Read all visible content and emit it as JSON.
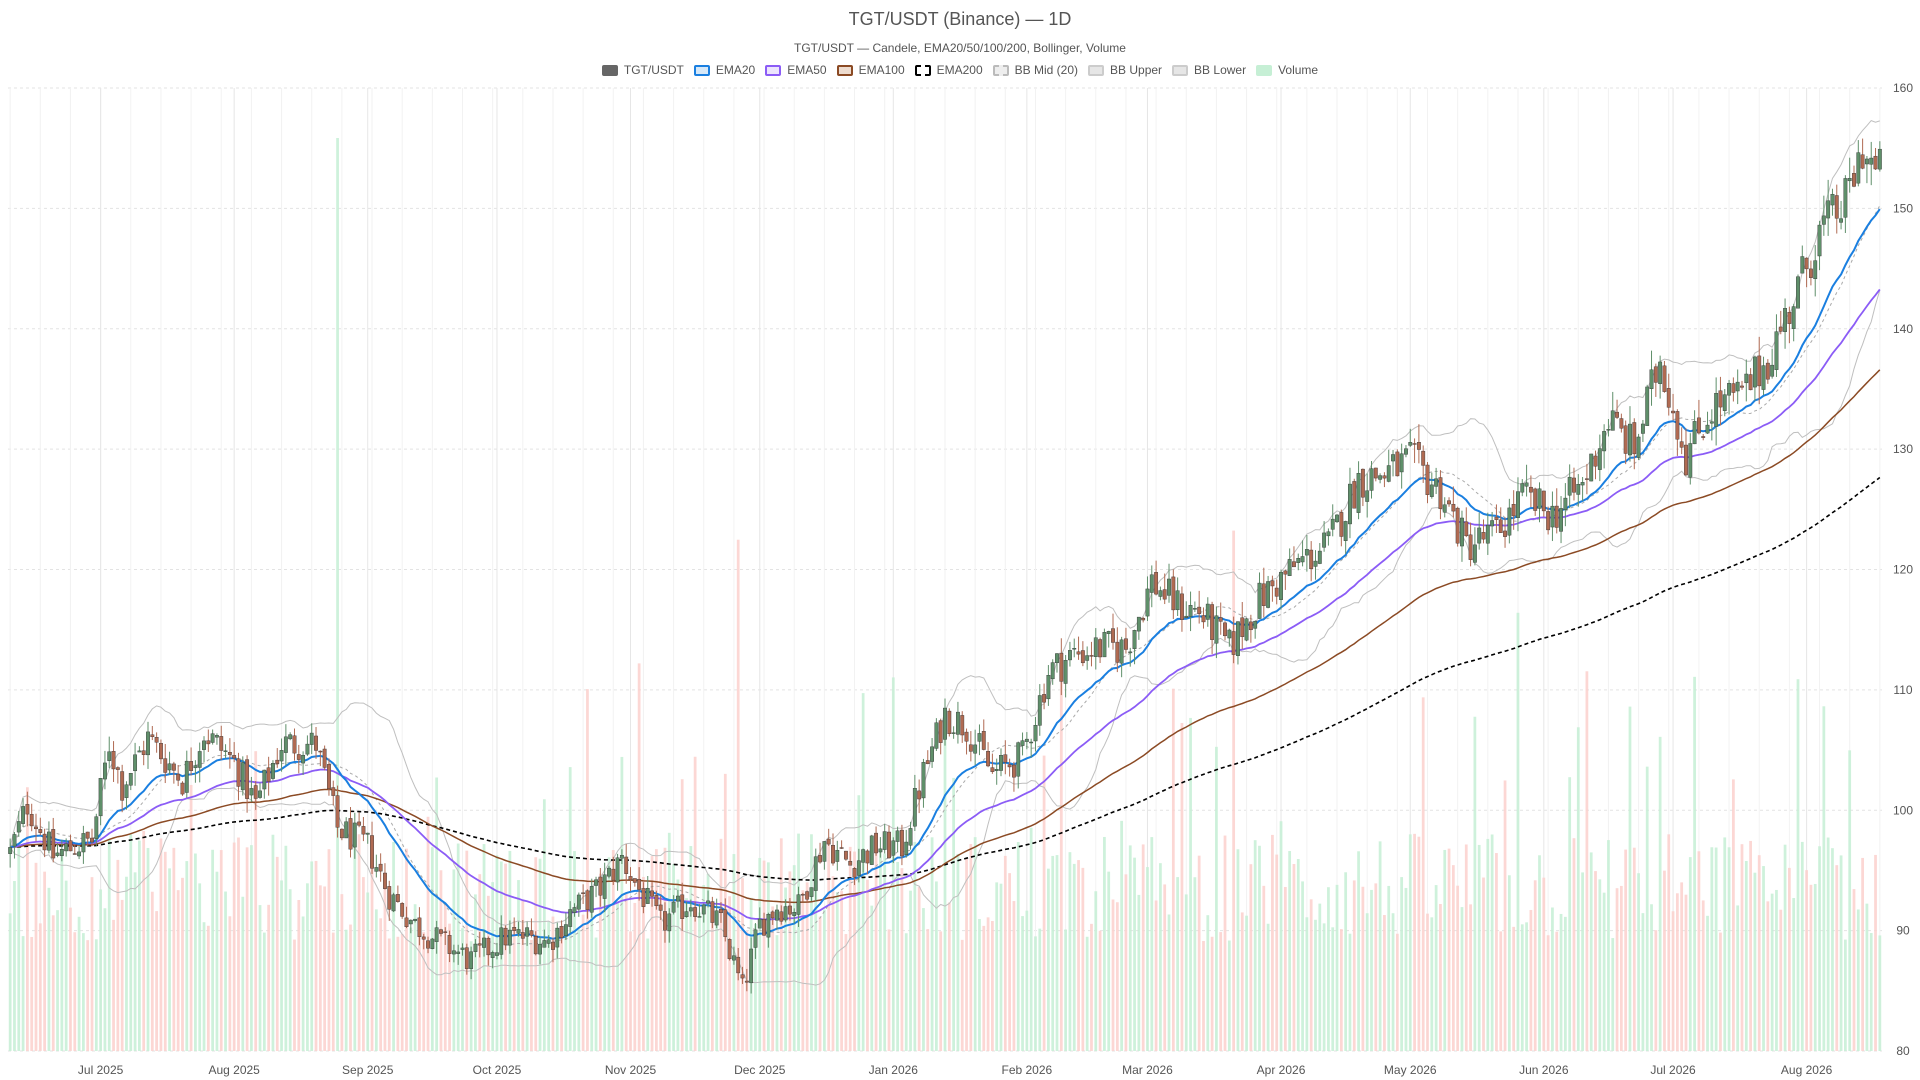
{
  "chart_data": {
    "type": "candlestick",
    "title": "TGT/USDT (Binance) — 1D",
    "subtitle": "TGT/USDT — Candele, EMA20/50/100/200, Bollinger, Volume",
    "legend": [
      {
        "label": "TGT/USDT",
        "color": "#666666",
        "fill": "#666666",
        "dash": false
      },
      {
        "label": "EMA20",
        "color": "#1a7fe0",
        "fill": "#d6e8f8",
        "dash": false
      },
      {
        "label": "EMA50",
        "color": "#8b5cf6",
        "fill": "#ece4fd",
        "dash": false
      },
      {
        "label": "EMA100",
        "color": "#8b4a24",
        "fill": "#eedccf",
        "dash": false
      },
      {
        "label": "EMA200",
        "color": "#000000",
        "fill": "#ffffff",
        "dash": true
      },
      {
        "label": "BB Mid (20)",
        "color": "#bbbbbb",
        "fill": "#eeeeee",
        "dash": true
      },
      {
        "label": "BB Upper",
        "color": "#cccccc",
        "fill": "#e6e6e6",
        "dash": false
      },
      {
        "label": "BB Lower",
        "color": "#cccccc",
        "fill": "#e6e6e6",
        "dash": false
      },
      {
        "label": "Volume",
        "color": "#c6efd5",
        "fill": "#c6efd5",
        "dash": false
      }
    ],
    "x_axis": {
      "start": "2025-06-10",
      "end": "2026-08-18",
      "tick_labels": [
        {
          "date": "2025-07-01",
          "label": "Jul 2025"
        },
        {
          "date": "2025-08-01",
          "label": "Aug 2025"
        },
        {
          "date": "2025-09-01",
          "label": "Sep 2025"
        },
        {
          "date": "2025-10-01",
          "label": "Oct 2025"
        },
        {
          "date": "2025-11-01",
          "label": "Nov 2025"
        },
        {
          "date": "2025-12-01",
          "label": "Dec 2025"
        },
        {
          "date": "2026-01-01",
          "label": "Jan 2026"
        },
        {
          "date": "2026-02-01",
          "label": "Feb 2026"
        },
        {
          "date": "2026-03-01",
          "label": "Mar 2026"
        },
        {
          "date": "2026-04-01",
          "label": "Apr 2026"
        },
        {
          "date": "2026-05-01",
          "label": "May 2026"
        },
        {
          "date": "2026-06-01",
          "label": "Jun 2026"
        },
        {
          "date": "2026-07-01",
          "label": "Jul 2026"
        },
        {
          "date": "2026-08-01",
          "label": "Aug 2026"
        }
      ]
    },
    "y_axis": {
      "min": 80,
      "max": 160,
      "ticks": [
        80,
        90,
        100,
        110,
        120,
        130,
        140,
        150,
        160
      ],
      "position": "right"
    },
    "grid": true,
    "colors": {
      "up": "#5f8f6a",
      "down": "#b06a52",
      "volume_up": "#c6efd5",
      "volume_down": "#fbd0cc"
    },
    "price_path": [
      [
        "2025-06-10",
        96.5
      ],
      [
        "2025-06-14",
        100.5
      ],
      [
        "2025-06-20",
        96.2
      ],
      [
        "2025-06-25",
        97.0
      ],
      [
        "2025-06-29",
        97.5
      ],
      [
        "2025-07-03",
        105.5
      ],
      [
        "2025-07-06",
        102.0
      ],
      [
        "2025-07-12",
        106.0
      ],
      [
        "2025-07-20",
        102.5
      ],
      [
        "2025-07-25",
        106.5
      ],
      [
        "2025-08-01",
        104.0
      ],
      [
        "2025-08-06",
        100.5
      ],
      [
        "2025-08-12",
        105.5
      ],
      [
        "2025-08-20",
        105.5
      ],
      [
        "2025-08-25",
        98.5
      ],
      [
        "2025-09-01",
        97.0
      ],
      [
        "2025-09-06",
        93.0
      ],
      [
        "2025-09-12",
        90.5
      ],
      [
        "2025-09-18",
        89.0
      ],
      [
        "2025-09-25",
        87.5
      ],
      [
        "2025-10-03",
        89.5
      ],
      [
        "2025-10-08",
        89.5
      ],
      [
        "2025-10-13",
        89.0
      ],
      [
        "2025-10-18",
        91.5
      ],
      [
        "2025-10-25",
        93.5
      ],
      [
        "2025-10-30",
        96.0
      ],
      [
        "2025-11-02",
        94.0
      ],
      [
        "2025-11-08",
        90.5
      ],
      [
        "2025-11-15",
        92.5
      ],
      [
        "2025-11-22",
        90.5
      ],
      [
        "2025-11-27",
        85.0
      ],
      [
        "2025-12-01",
        90.5
      ],
      [
        "2025-12-05",
        92.0
      ],
      [
        "2025-12-10",
        92.0
      ],
      [
        "2025-12-16",
        97.5
      ],
      [
        "2025-12-22",
        95.5
      ],
      [
        "2025-12-28",
        97.0
      ],
      [
        "2026-01-03",
        97.0
      ],
      [
        "2026-01-08",
        103.0
      ],
      [
        "2026-01-13",
        108.0
      ],
      [
        "2026-01-18",
        107.0
      ],
      [
        "2026-01-24",
        103.0
      ],
      [
        "2026-01-31",
        104.5
      ],
      [
        "2026-02-06",
        111.5
      ],
      [
        "2026-02-12",
        113.0
      ],
      [
        "2026-02-18",
        113.5
      ],
      [
        "2026-02-24",
        113.5
      ],
      [
        "2026-03-02",
        119.0
      ],
      [
        "2026-03-08",
        117.0
      ],
      [
        "2026-03-13",
        116.5
      ],
      [
        "2026-03-20",
        113.5
      ],
      [
        "2026-03-27",
        117.5
      ],
      [
        "2026-04-05",
        120.5
      ],
      [
        "2026-04-12",
        122.0
      ],
      [
        "2026-04-19",
        127.5
      ],
      [
        "2026-04-25",
        128.0
      ],
      [
        "2026-05-01",
        129.0
      ],
      [
        "2026-05-08",
        126.5
      ],
      [
        "2026-05-14",
        122.0
      ],
      [
        "2026-05-21",
        123.0
      ],
      [
        "2026-05-27",
        126.0
      ],
      [
        "2026-06-03",
        124.5
      ],
      [
        "2026-06-10",
        127.0
      ],
      [
        "2026-06-16",
        132.5
      ],
      [
        "2026-06-22",
        130.0
      ],
      [
        "2026-06-28",
        137.5
      ],
      [
        "2026-07-04",
        129.5
      ],
      [
        "2026-07-10",
        133.5
      ],
      [
        "2026-07-17",
        134.5
      ],
      [
        "2026-07-23",
        137.5
      ],
      [
        "2026-07-29",
        142.5
      ],
      [
        "2026-08-04",
        148.0
      ],
      [
        "2026-08-10",
        150.5
      ],
      [
        "2026-08-14",
        155.0
      ],
      [
        "2026-08-17",
        153.0
      ]
    ],
    "volume_spikes": [
      {
        "date": "2025-08-25",
        "value": 1.0,
        "direction": "up"
      },
      {
        "date": "2025-11-26",
        "value": 0.56,
        "direction": "down"
      },
      {
        "date": "2026-03-21",
        "value": 0.57,
        "direction": "down"
      },
      {
        "date": "2026-05-26",
        "value": 0.48,
        "direction": "up"
      }
    ],
    "volume_scale_note": "relative"
  }
}
